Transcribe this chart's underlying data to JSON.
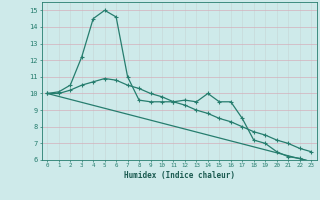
{
  "xlabel": "Humidex (Indice chaleur)",
  "background_color": "#ceeaea",
  "grid_color": "#b8d8d8",
  "line_color": "#267d6e",
  "xlim": [
    -0.5,
    23.5
  ],
  "ylim": [
    6,
    15.5
  ],
  "xticks": [
    0,
    1,
    2,
    3,
    4,
    5,
    6,
    7,
    8,
    9,
    10,
    11,
    12,
    13,
    14,
    15,
    16,
    17,
    18,
    19,
    20,
    21,
    22,
    23
  ],
  "yticks": [
    6,
    7,
    8,
    9,
    10,
    11,
    12,
    13,
    14,
    15
  ],
  "line1_x": [
    0,
    1,
    2,
    3,
    4,
    5,
    6,
    7,
    8,
    9,
    10,
    11,
    12,
    13,
    14,
    15,
    16,
    17,
    18,
    19,
    20,
    21,
    22,
    23
  ],
  "line1_y": [
    10.0,
    10.1,
    10.5,
    12.2,
    14.5,
    15.0,
    14.6,
    11.0,
    9.6,
    9.5,
    9.5,
    9.5,
    9.6,
    9.5,
    10.0,
    9.5,
    9.5,
    8.5,
    7.2,
    7.0,
    6.5,
    6.2,
    6.1,
    5.9
  ],
  "line2_x": [
    0,
    1,
    2,
    3,
    4,
    5,
    6,
    7,
    8,
    9,
    10,
    11,
    12,
    13,
    14,
    15,
    16,
    17,
    18,
    19,
    20,
    21,
    22,
    23
  ],
  "line2_y": [
    10.0,
    10.0,
    10.2,
    10.5,
    10.7,
    10.9,
    10.8,
    10.5,
    10.3,
    10.0,
    9.8,
    9.5,
    9.3,
    9.0,
    8.8,
    8.5,
    8.3,
    8.0,
    7.7,
    7.5,
    7.2,
    7.0,
    6.7,
    6.5
  ],
  "line3_x": [
    0,
    23
  ],
  "line3_y": [
    10.0,
    5.9
  ]
}
